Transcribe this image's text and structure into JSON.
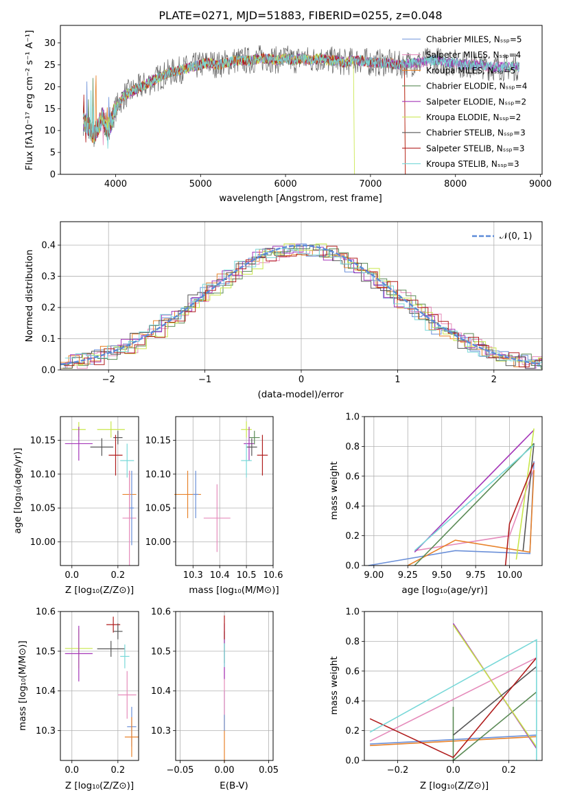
{
  "spectrum_panel": {
    "title": "PLATE=0271, MJD=51883, FIBERID=0255, z=0.048",
    "xlabel": "wavelength [Angstrom, rest frame]",
    "ylabel": "Flux [fλ10⁻¹⁷ erg cm⁻² s⁻¹ A⁻¹]",
    "xticks": [
      "4000",
      "5000",
      "6000",
      "7000",
      "8000",
      "9000"
    ],
    "yticks": [
      "0",
      "5",
      "10",
      "15",
      "20",
      "25",
      "30"
    ],
    "legend": [
      {
        "label": "Chabrier MILES, Nₛₛₚ=5",
        "color": "#6a8fd8"
      },
      {
        "label": "Salpeter MILES, Nₛₛₚ=4",
        "color": "#e58bbb"
      },
      {
        "label": "Kroupa MILES, Nₛₛₚ=5",
        "color": "#e8822a"
      },
      {
        "label": "Chabrier ELODIE, Nₛₛₚ=4",
        "color": "#5a8a55"
      },
      {
        "label": "Salpeter ELODIE, Nₛₛₚ=2",
        "color": "#a435b8"
      },
      {
        "label": "Kroupa ELODIE, Nₛₛₚ=2",
        "color": "#c8e64a"
      },
      {
        "label": "Chabrier STELIB, Nₛₛₚ=3",
        "color": "#555555"
      },
      {
        "label": "Salpeter STELIB, Nₛₛₚ=3",
        "color": "#b01c1c"
      },
      {
        "label": "Kroupa STELIB, Nₛₛₚ=3",
        "color": "#78d8d8"
      }
    ]
  },
  "residual_panel": {
    "xlabel": "(data-model)/error",
    "ylabel": "Normed distribution",
    "xticks": [
      "−2",
      "−1",
      "0",
      "1",
      "2"
    ],
    "yticks": [
      "0.0",
      "0.1",
      "0.2",
      "0.3",
      "0.4"
    ],
    "legend_label": "𝒩(0, 1)"
  },
  "small_panels": {
    "age_vs_Z": {
      "xlabel": "Z [log₁₀(Z/Z⊙)]",
      "ylabel": "age  [log₁₀(age/yr)]",
      "xticks": [
        "0.0",
        "0.2"
      ],
      "yticks": [
        "10.00",
        "10.05",
        "10.10",
        "10.15"
      ]
    },
    "age_vs_mass": {
      "xlabel": "mass [log₁₀(M/M⊙)]",
      "xticks": [
        "10.3",
        "10.4",
        "10.5",
        "10.6"
      ],
      "yticks": [
        "10.00",
        "10.05",
        "10.10",
        "10.15"
      ]
    },
    "mw_vs_age": {
      "xlabel": "age  [log₁₀(age/yr)]",
      "ylabel": "mass weight",
      "xticks": [
        "9.00",
        "9.25",
        "9.50",
        "9.75",
        "10.00"
      ],
      "yticks": [
        "0.0",
        "0.2",
        "0.4",
        "0.6",
        "0.8",
        "1.0"
      ]
    },
    "mass_vs_Z": {
      "xlabel": "Z [log₁₀(Z/Z⊙)]",
      "ylabel": "mass [log₁₀(M/M⊙)]",
      "xticks": [
        "0.0",
        "0.2"
      ],
      "yticks": [
        "10.3",
        "10.4",
        "10.5",
        "10.6"
      ]
    },
    "mass_vs_ebv": {
      "xlabel": "E(B-V)",
      "xticks": [
        "−0.05",
        "0.00",
        "0.05"
      ],
      "yticks": [
        "10.3",
        "10.4",
        "10.5",
        "10.6"
      ]
    },
    "mw_vs_Z": {
      "xlabel": "Z [log₁₀(Z/Z⊙)]",
      "ylabel": "mass weight",
      "xticks": [
        "−0.2",
        "0.0",
        "0.2"
      ],
      "yticks": [
        "0.0",
        "0.2",
        "0.4",
        "0.6",
        "0.8",
        "1.0"
      ]
    }
  },
  "chart_data": [
    {
      "type": "line",
      "title": "PLATE=0271, MJD=51883, FIBERID=0255, z=0.048",
      "xlabel": "wavelength [Angstrom, rest frame]",
      "ylabel": "Flux [fλ10⁻¹⁷ erg cm⁻² s⁻¹ A⁻¹]",
      "xlim": [
        3350,
        9020
      ],
      "ylim": [
        0,
        34
      ],
      "legend_position": "top-right",
      "x": [
        3650,
        3700,
        3750,
        3800,
        3850,
        3900,
        3950,
        4000,
        4100,
        4200,
        4300,
        4400,
        4500,
        4600,
        4700,
        4800,
        4900,
        5000,
        5100,
        5200,
        5300,
        5400,
        5500,
        5600,
        5700,
        5800,
        5900,
        6000,
        6100,
        6200,
        6300,
        6400,
        6500,
        6600,
        6700,
        6800,
        6900,
        7000,
        7100,
        7200,
        7300,
        7400,
        7500,
        7600,
        7700,
        7800,
        7900,
        8000,
        8100,
        8200,
        8300,
        8400,
        8500,
        8600,
        8700,
        8750
      ],
      "series": [
        {
          "name": "Chabrier MILES, Nₛₛₚ=5",
          "values": [
            12,
            10,
            9,
            11,
            13,
            10,
            12,
            15,
            18,
            19,
            20,
            21,
            22,
            23,
            23.5,
            24,
            24.5,
            25,
            25.5,
            25,
            25.5,
            26,
            26,
            26,
            26.5,
            26.5,
            26,
            26.5,
            26,
            26.5,
            26,
            26.5,
            26,
            26,
            25.5,
            26,
            26,
            25.5,
            25.5,
            25.5,
            25,
            25,
            25.5,
            25.5,
            26,
            26,
            25.5,
            25.5,
            25,
            25,
            25,
            24.5,
            24.5,
            24.5,
            24.5,
            24.5
          ]
        },
        {
          "name": "Kroupa STELIB, Nₛₛₚ=3",
          "values": [
            11,
            12,
            9,
            12,
            14,
            10,
            12,
            16,
            18,
            20,
            20,
            21,
            22,
            23,
            23.5,
            24,
            24.5,
            25,
            25,
            25.5,
            25,
            26,
            26,
            26,
            26,
            26.5,
            26.5,
            26,
            26.5,
            26,
            26.5,
            26,
            26,
            26,
            26,
            26,
            25.5,
            26,
            25.5,
            25.5,
            25,
            25,
            25.5,
            25.5,
            26,
            26,
            25.5,
            25.5,
            25,
            25,
            25,
            24.5,
            24.5,
            24.5,
            24.5,
            24.5
          ]
        }
      ]
    },
    {
      "type": "line",
      "xlabel": "(data-model)/error",
      "ylabel": "Normed distribution",
      "xlim": [
        -2.5,
        2.5
      ],
      "ylim": [
        0,
        0.475
      ],
      "legend_position": "top-right",
      "series": [
        {
          "name": "𝒩(0, 1)",
          "kind": "gaussian",
          "mu": 0,
          "sigma": 1
        }
      ]
    }
  ]
}
